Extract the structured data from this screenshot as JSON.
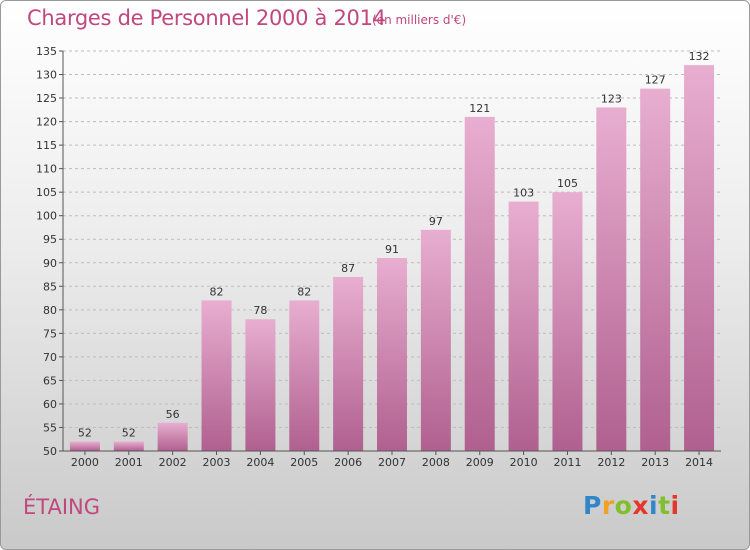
{
  "title": "Charges de Personnel 2000 à 2014",
  "subtitle": "(en milliers d'€)",
  "commune": "ÉTAING",
  "logo": {
    "letters": [
      "P",
      "r",
      "o",
      "x",
      "i",
      "t",
      "i"
    ]
  },
  "colors": {
    "accent": "#c0487e",
    "bar_top": "#e8aed0",
    "bar_bottom": "#b0608f",
    "grid": "#bdbdbd",
    "logo_letters": [
      "#2f86c8",
      "#f2a024",
      "#82bf2c",
      "#e4362a",
      "#2f86c8",
      "#82bf2c",
      "#e4362a"
    ]
  },
  "chart_data": {
    "type": "bar",
    "categories": [
      "2000",
      "2001",
      "2002",
      "2003",
      "2004",
      "2005",
      "2006",
      "2007",
      "2008",
      "2009",
      "2010",
      "2011",
      "2012",
      "2013",
      "2014"
    ],
    "values": [
      52,
      52,
      56,
      82,
      78,
      82,
      87,
      91,
      97,
      121,
      103,
      105,
      123,
      127,
      132
    ],
    "ylim": [
      50,
      135
    ],
    "yticks": [
      50,
      55,
      60,
      65,
      70,
      75,
      80,
      85,
      90,
      95,
      100,
      105,
      110,
      115,
      120,
      125,
      130,
      135
    ],
    "grid": true,
    "xlabel": "",
    "ylabel": ""
  }
}
